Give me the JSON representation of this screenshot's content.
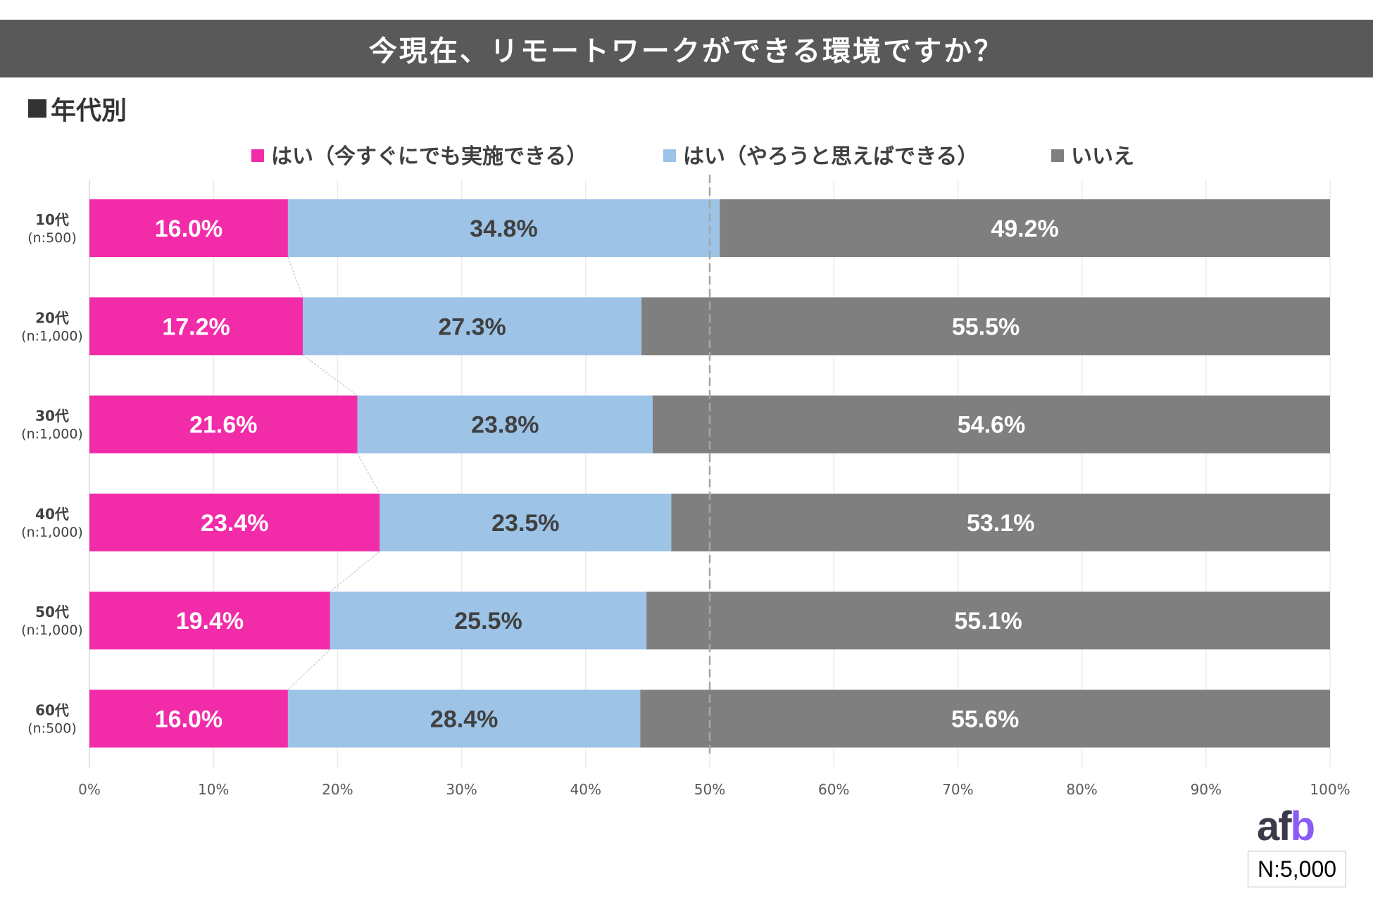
{
  "header": {
    "title": "今現在、リモートワークができる環境ですか？"
  },
  "section": {
    "label": "年代別"
  },
  "chart_data": {
    "type": "bar",
    "orientation": "horizontal",
    "stacked": true,
    "title": "今現在、リモートワークができる環境ですか？",
    "categories": [
      "10代",
      "20代",
      "30代",
      "40代",
      "50代",
      "60代"
    ],
    "category_n": [
      "(n:500)",
      "(n:1,000)",
      "(n:1,000)",
      "(n:1,000)",
      "(n:1,000)",
      "(n:500)"
    ],
    "series": [
      {
        "name": "はい（今すぐにでも実施できる）",
        "color": "#f22ca9",
        "label_color": "#ffffff",
        "values": [
          16.0,
          17.2,
          21.6,
          23.4,
          19.4,
          16.0
        ]
      },
      {
        "name": "はい（やろうと思えばできる）",
        "color": "#9dc3e6",
        "label_color": "#404040",
        "values": [
          34.8,
          27.3,
          23.8,
          23.5,
          25.5,
          28.4
        ]
      },
      {
        "name": "いいえ",
        "color": "#7f7f7f",
        "label_color": "#ffffff",
        "values": [
          49.2,
          55.5,
          54.6,
          53.1,
          55.1,
          55.6
        ]
      }
    ],
    "xlim": [
      0,
      100
    ],
    "x_ticks": [
      "0%",
      "10%",
      "20%",
      "30%",
      "40%",
      "50%",
      "60%",
      "70%",
      "80%",
      "90%",
      "100%"
    ],
    "reference_line": 50,
    "grid": true,
    "legend_position": "top"
  },
  "footer": {
    "logo_a": "af",
    "logo_b": "b",
    "sample_size": "N:5,000"
  }
}
